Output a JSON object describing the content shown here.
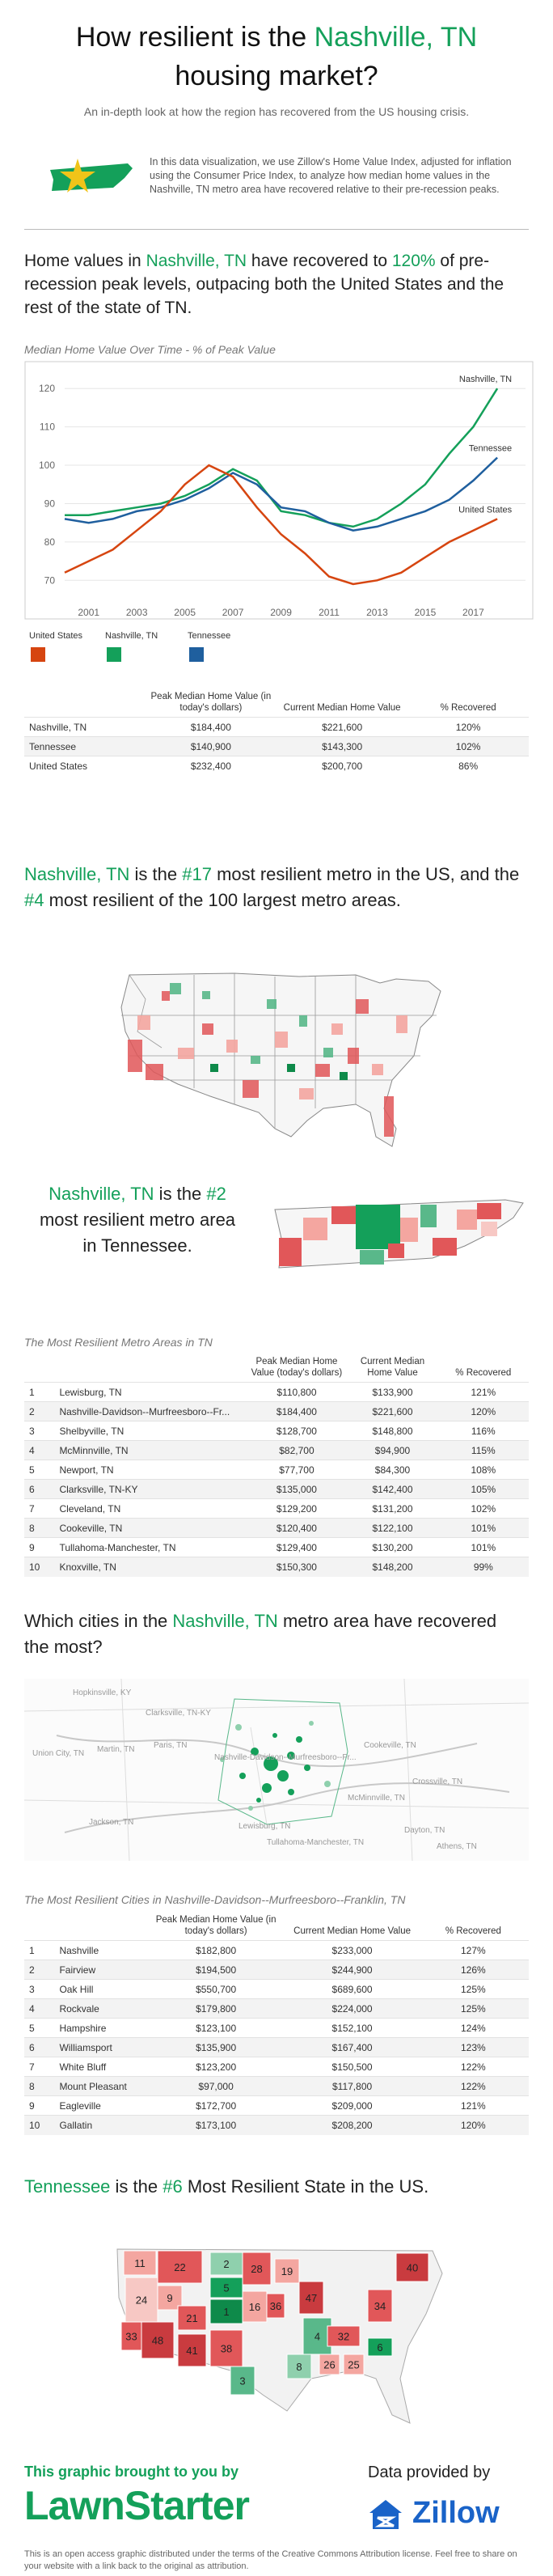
{
  "header": {
    "title_prefix": "How resilient is the ",
    "title_city": "Nashville, TN",
    "title_suffix": " housing market?",
    "subtitle": "An in-depth look at how the region has recovered from the US housing crisis.",
    "intro": "In this data visualization, we use Zillow's Home Value Index, adjusted for inflation using the Consumer Price Index, to analyze how median home values in the Nashville, TN metro area have recovered relative to their pre-recession peaks."
  },
  "section1": {
    "headline_a": "Home values in ",
    "headline_city": "Nashville, TN",
    "headline_b": " have recovered to ",
    "headline_pct": "120%",
    "headline_c": " of pre-recession peak levels, outpacing both the United States and the rest of the state of TN.",
    "chart_title": "Median Home Value Over Time - % of Peak Value",
    "legend": [
      {
        "label": "United States",
        "color": "#d64510"
      },
      {
        "label": "Nashville, TN",
        "color": "#14a05a"
      },
      {
        "label": "Tennessee",
        "color": "#1f5f9e"
      }
    ],
    "table": {
      "headers": [
        "",
        "Peak Median Home Value (in today's dollars)",
        "Current Median Home Value",
        "% Recovered"
      ],
      "rows": [
        [
          "Nashville, TN",
          "$184,400",
          "$221,600",
          "120%"
        ],
        [
          "Tennessee",
          "$140,900",
          "$143,300",
          "102%"
        ],
        [
          "United States",
          "$232,400",
          "$200,700",
          "86%"
        ]
      ]
    }
  },
  "chart_data": {
    "type": "line",
    "title": "Median Home Value Over Time - % of Peak Value",
    "xlabel": "",
    "ylabel": "",
    "x": [
      2000,
      2001,
      2002,
      2003,
      2004,
      2005,
      2006,
      2007,
      2008,
      2009,
      2010,
      2011,
      2012,
      2013,
      2014,
      2015,
      2016,
      2017,
      2018
    ],
    "xticks": [
      "2001",
      "2003",
      "2005",
      "2007",
      "2009",
      "2011",
      "2013",
      "2015",
      "2017"
    ],
    "yticks": [
      70,
      80,
      90,
      100,
      110,
      120
    ],
    "ylim": [
      65,
      123
    ],
    "xlim": [
      2000,
      2018.5
    ],
    "series": [
      {
        "name": "Nashville, TN",
        "color": "#14a05a",
        "values": [
          87,
          87,
          88,
          89,
          90,
          92,
          95,
          99,
          96,
          88,
          87,
          85,
          84,
          86,
          90,
          95,
          103,
          110,
          120
        ]
      },
      {
        "name": "Tennessee",
        "color": "#1f5f9e",
        "values": [
          86,
          85,
          86,
          88,
          89,
          91,
          94,
          98,
          95,
          89,
          88,
          85,
          83,
          84,
          86,
          88,
          91,
          96,
          102
        ]
      },
      {
        "name": "United States",
        "color": "#d64510",
        "values": [
          72,
          75,
          78,
          83,
          88,
          95,
          100,
          97,
          89,
          82,
          77,
          71,
          69,
          70,
          72,
          76,
          80,
          83,
          86
        ]
      }
    ]
  },
  "section2": {
    "headline_city": "Nashville, TN",
    "headline_a": " is the ",
    "rank_us": "#17",
    "headline_b": " most resilient metro in the US, and the ",
    "rank_100": "#4",
    "headline_c": " most resilient of the 100 largest metro areas."
  },
  "section3": {
    "headline_city": "Nashville, TN",
    "headline_a": " is the ",
    "rank": "#2",
    "headline_b": " most resilient metro area in Tennessee.",
    "table_title": "The Most Resilient Metro Areas in TN",
    "table": {
      "headers": [
        "",
        "",
        "Peak Median Home Value (today's dollars)",
        "Current Median Home Value",
        "% Recovered"
      ],
      "rows": [
        [
          "1",
          "Lewisburg, TN",
          "$110,800",
          "$133,900",
          "121%"
        ],
        [
          "2",
          "Nashville-Davidson--Murfreesboro--Fr...",
          "$184,400",
          "$221,600",
          "120%"
        ],
        [
          "3",
          "Shelbyville, TN",
          "$128,700",
          "$148,800",
          "116%"
        ],
        [
          "4",
          "McMinnville, TN",
          "$82,700",
          "$94,900",
          "115%"
        ],
        [
          "5",
          "Newport, TN",
          "$77,700",
          "$84,300",
          "108%"
        ],
        [
          "6",
          "Clarksville, TN-KY",
          "$135,000",
          "$142,400",
          "105%"
        ],
        [
          "7",
          "Cleveland, TN",
          "$129,200",
          "$131,200",
          "102%"
        ],
        [
          "8",
          "Cookeville, TN",
          "$120,400",
          "$122,100",
          "101%"
        ],
        [
          "9",
          "Tullahoma-Manchester, TN",
          "$129,400",
          "$130,200",
          "101%"
        ],
        [
          "10",
          "Knoxville, TN",
          "$150,300",
          "$148,200",
          "99%"
        ]
      ]
    }
  },
  "section4": {
    "headline_a": "Which cities in the ",
    "headline_city": "Nashville, TN",
    "headline_b": " metro area have recovered the most?",
    "map_labels": [
      "Hopkinsville, KY",
      "Clarksville, TN-KY",
      "Martin, TN",
      "Paris, TN",
      "Union City, TN",
      "Nashville-Davidson--Murfreesboro--Fr...",
      "Cookeville, TN",
      "Crossville, TN",
      "Jackson, TN",
      "McMinnville, TN",
      "Lewisburg, TN",
      "Tullahoma-Manchester, TN",
      "Dayton, TN",
      "Athens, TN"
    ],
    "table_title": "The Most Resilient Cities in Nashville-Davidson--Murfreesboro--Franklin, TN",
    "table": {
      "headers": [
        "",
        "",
        "Peak Median Home Value (in today's dollars)",
        "Current Median Home Value",
        "% Recovered"
      ],
      "rows": [
        [
          "1",
          "Nashville",
          "$182,800",
          "$233,000",
          "127%"
        ],
        [
          "2",
          "Fairview",
          "$194,500",
          "$244,900",
          "126%"
        ],
        [
          "3",
          "Oak Hill",
          "$550,700",
          "$689,600",
          "125%"
        ],
        [
          "4",
          "Rockvale",
          "$179,800",
          "$224,000",
          "125%"
        ],
        [
          "5",
          "Hampshire",
          "$123,100",
          "$152,100",
          "124%"
        ],
        [
          "6",
          "Williamsport",
          "$135,900",
          "$167,400",
          "123%"
        ],
        [
          "7",
          "White Bluff",
          "$123,200",
          "$150,500",
          "122%"
        ],
        [
          "8",
          "Mount Pleasant",
          "$97,000",
          "$117,800",
          "122%"
        ],
        [
          "9",
          "Eagleville",
          "$172,700",
          "$209,000",
          "121%"
        ],
        [
          "10",
          "Gallatin",
          "$173,100",
          "$208,200",
          "120%"
        ]
      ]
    }
  },
  "section5": {
    "headline_state": "Tennessee",
    "headline_a": " is the ",
    "rank": "#6",
    "headline_b": " Most Resilient State in the US.",
    "state_ranks": [
      "11",
      "22",
      "2",
      "28",
      "19",
      "9",
      "24",
      "5",
      "48",
      "21",
      "1",
      "16",
      "36",
      "47",
      "33",
      "41",
      "38",
      "3",
      "4",
      "8",
      "32",
      "26",
      "25",
      "6",
      "34",
      "40"
    ]
  },
  "footer": {
    "brought_by": "This graphic brought to you by",
    "brand": "LawnStarter",
    "data_by": "Data provided by",
    "data_brand": "Zillow",
    "license": "This is an open access graphic distributed under the terms of the Creative Commons Attribution license. Feel free to share on your website with a link back to the original as attribution."
  }
}
